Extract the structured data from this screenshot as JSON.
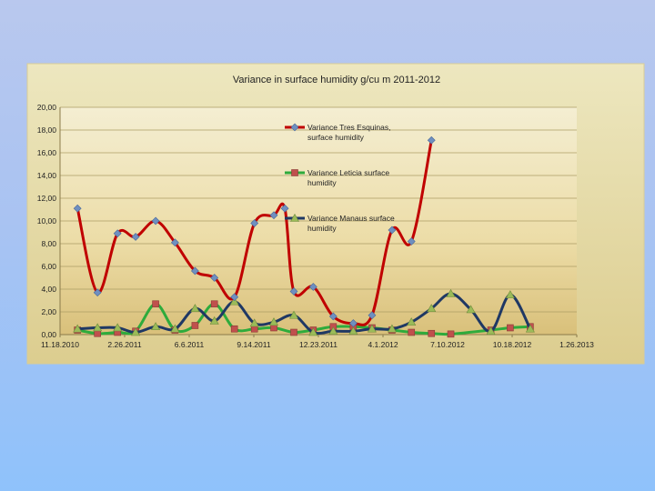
{
  "chart_data": {
    "type": "line",
    "title": "Variance in surface humidity g/cu m 2011-2012",
    "xlabel": "",
    "ylabel": "",
    "ylim": [
      0,
      20
    ],
    "yticks": [
      0,
      2,
      4,
      6,
      8,
      10,
      12,
      14,
      16,
      18,
      20
    ],
    "ytick_labels": [
      "0,00",
      "2,00",
      "4,00",
      "6,00",
      "8,00",
      "10,00",
      "12,00",
      "14,00",
      "16,00",
      "18,00",
      "20,00"
    ],
    "xlim": [
      "2010-11-18",
      "2013-01-26"
    ],
    "xtick_labels": [
      "11.18.2010",
      "2.26.2011",
      "6.6.2011",
      "9.14.2011",
      "12.23.2011",
      "4.1.2012",
      "7.10.2012",
      "10.18.2012",
      "1.26.2013"
    ],
    "xtick_dates": [
      "2010-11-18",
      "2011-02-26",
      "2011-06-06",
      "2011-09-14",
      "2011-12-23",
      "2012-04-01",
      "2012-07-10",
      "2012-10-18",
      "2013-01-26"
    ],
    "grid": "horizontal",
    "legend_placement": "right",
    "series": [
      {
        "name": "Variance Tres Esquinas, surface humidity",
        "color": "#c00000",
        "marker_color": "#6f8fc0",
        "marker": "diamond",
        "x": [
          "2010-12-15",
          "2011-01-15",
          "2011-02-15",
          "2011-03-15",
          "2011-04-15",
          "2011-05-15",
          "2011-06-15",
          "2011-07-15",
          "2011-08-15",
          "2011-09-15",
          "2011-10-15",
          "2011-11-01",
          "2011-11-15",
          "2011-12-15",
          "2012-01-15",
          "2012-02-15",
          "2012-03-15",
          "2012-04-15",
          "2012-05-15",
          "2012-06-15",
          "2012-07-01",
          "2012-07-15"
        ],
        "values": [
          11.1,
          3.7,
          8.9,
          8.6,
          10.0,
          8.1,
          5.6,
          5.0,
          3.3,
          9.8,
          10.5,
          11.1,
          3.8,
          4.2,
          1.6,
          1.0,
          1.7,
          9.2,
          8.2,
          17.1,
          null,
          null
        ]
      },
      {
        "name": "Variance Leticia surface humidity",
        "color": "#2eab3c",
        "marker_color": "#c0504d",
        "marker": "square",
        "x": [
          "2010-12-15",
          "2011-01-15",
          "2011-02-15",
          "2011-03-15",
          "2011-04-15",
          "2011-05-15",
          "2011-06-15",
          "2011-07-15",
          "2011-08-15",
          "2011-09-15",
          "2011-10-15",
          "2011-11-15",
          "2011-12-15",
          "2012-01-15",
          "2012-02-15",
          "2012-03-15",
          "2012-04-15",
          "2012-05-15",
          "2012-06-15",
          "2012-07-15",
          "2012-09-15",
          "2012-10-15",
          "2012-11-15"
        ],
        "values": [
          0.4,
          0.1,
          0.2,
          0.3,
          2.7,
          0.4,
          0.8,
          2.7,
          0.5,
          0.5,
          0.6,
          0.2,
          0.4,
          0.7,
          0.7,
          0.6,
          0.4,
          0.2,
          0.1,
          0.05,
          0.4,
          0.6,
          0.7
        ]
      },
      {
        "name": "Variance Manaus surface humidity",
        "color": "#1f3864",
        "marker_color": "#9bbb59",
        "marker": "triangle",
        "x": [
          "2010-12-15",
          "2011-01-15",
          "2011-02-15",
          "2011-03-15",
          "2011-04-15",
          "2011-05-15",
          "2011-06-15",
          "2011-07-15",
          "2011-08-15",
          "2011-09-15",
          "2011-10-15",
          "2011-11-15",
          "2011-12-15",
          "2012-01-15",
          "2012-02-15",
          "2012-03-15",
          "2012-04-15",
          "2012-05-15",
          "2012-06-15",
          "2012-07-15",
          "2012-08-15",
          "2012-09-15",
          "2012-10-15",
          "2012-11-15"
        ],
        "values": [
          0.5,
          0.6,
          0.6,
          0.2,
          0.7,
          0.5,
          2.3,
          1.2,
          2.9,
          1.0,
          1.1,
          1.7,
          0.2,
          0.3,
          0.3,
          0.5,
          0.5,
          1.1,
          2.3,
          3.6,
          2.2,
          0.3,
          3.5,
          0.5
        ]
      }
    ]
  }
}
